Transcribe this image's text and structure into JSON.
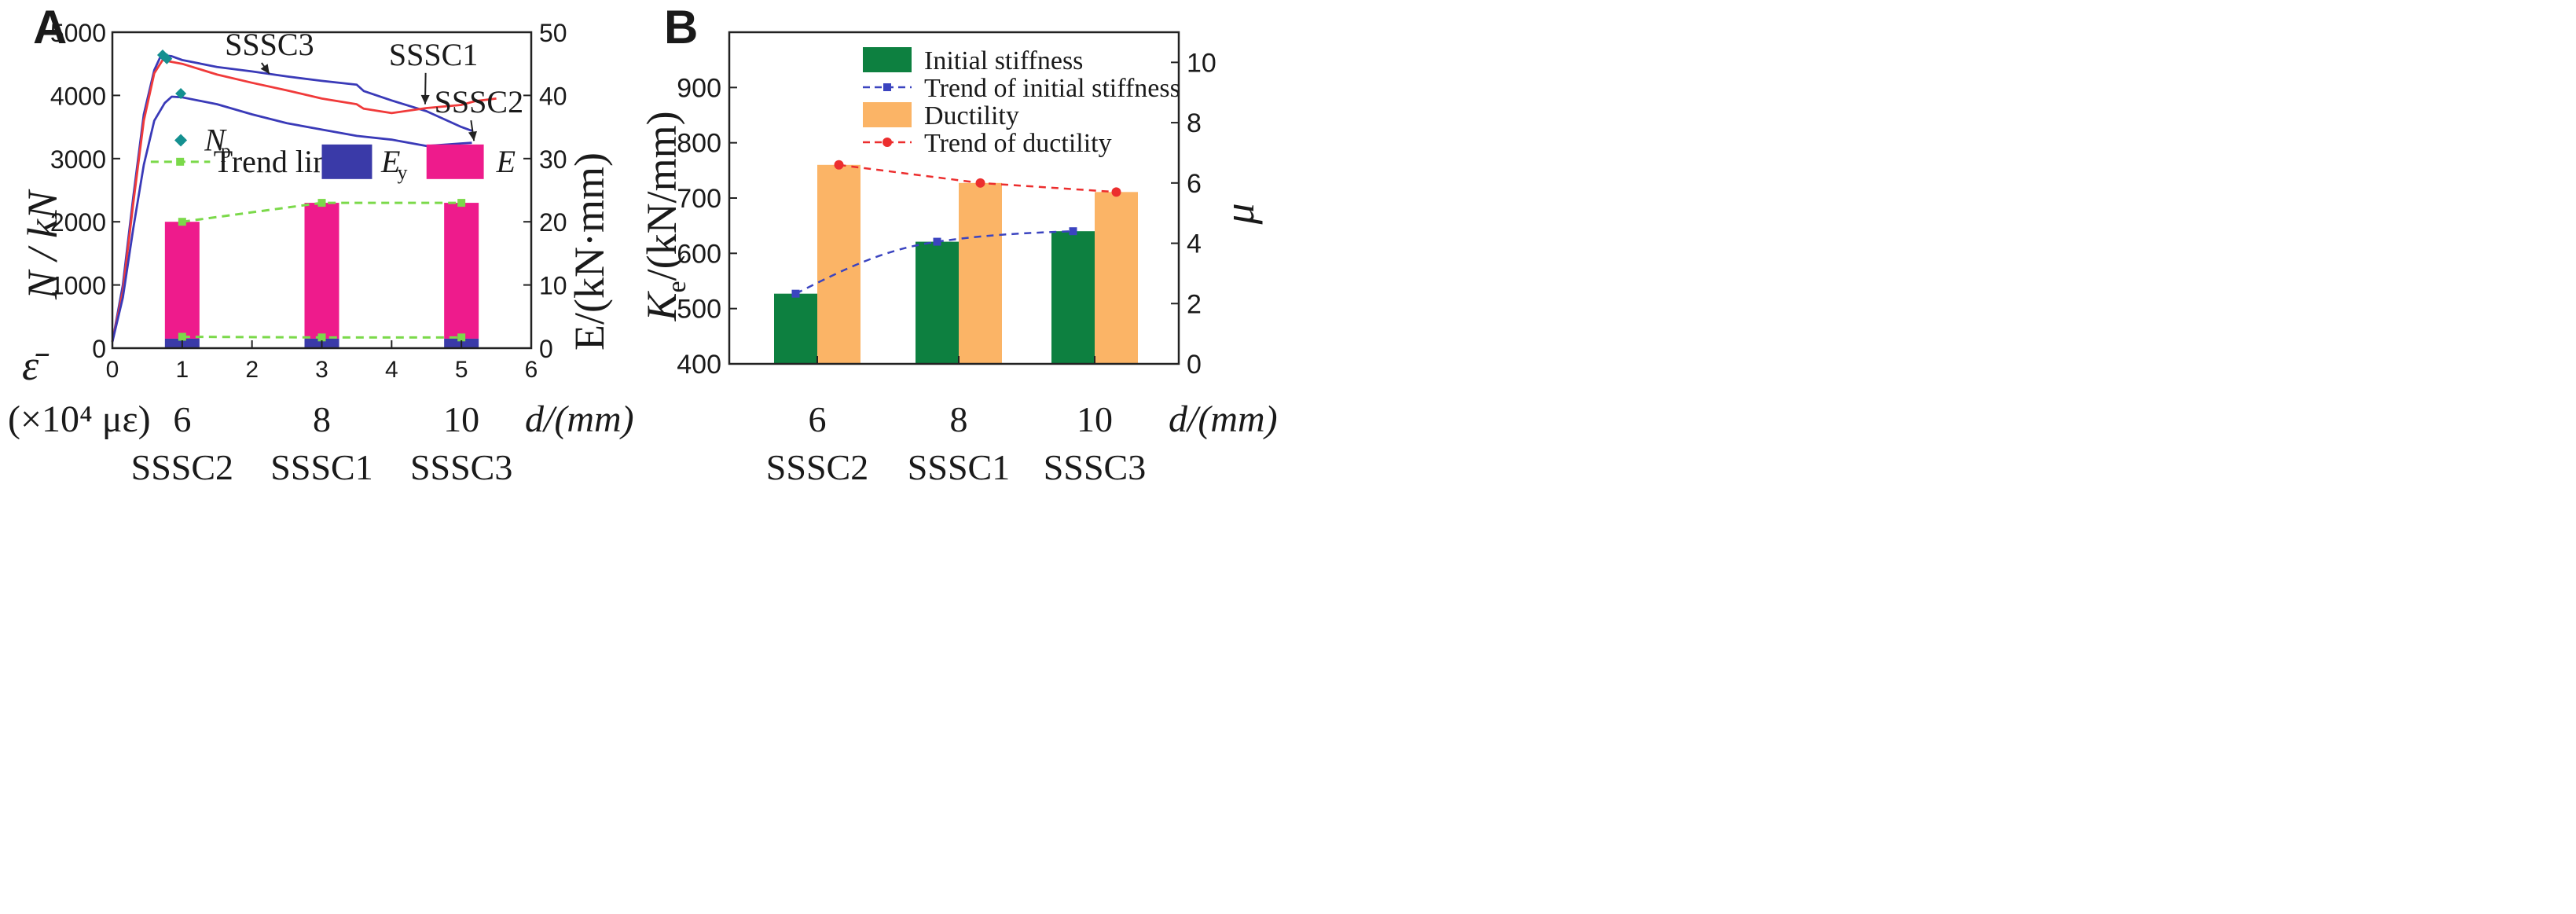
{
  "colors": {
    "ey_blue": "#3a3aa8",
    "e_magenta": "#ee1b8c",
    "trend_green": "#7bd94a",
    "teal": "#149090",
    "curve_red": "#f03a3a",
    "curve_blue": "#3a3ab8",
    "stiff_green": "#0d8040",
    "duct_orange": "#fbb466",
    "trend_blue": "#3b44c0",
    "trend_red": "#ec2e2e"
  },
  "chart_data": [
    {
      "panel_label": "A",
      "type": "line+bar",
      "ylabel_left": "N / kN",
      "ylabel_right": "E/(kN·mm)",
      "x_symbol": "ε̄",
      "x_unit": "(×10⁴ με)",
      "x_secondary_label": "d/(mm)",
      "x_ticks": [
        "0",
        "1",
        "2",
        "3",
        "4",
        "5",
        "6"
      ],
      "xlim": [
        0,
        6
      ],
      "y_left_ticks": [
        "0",
        "1000",
        "2000",
        "3000",
        "4000",
        "5000"
      ],
      "ylim_left": [
        0,
        5000
      ],
      "y_right_ticks": [
        "0",
        "10",
        "20",
        "30",
        "40",
        "50"
      ],
      "ylim_right": [
        0,
        50
      ],
      "secondary_ticks": [
        {
          "x": 1,
          "d": "6",
          "specimen": "SSSC2"
        },
        {
          "x": 3,
          "d": "8",
          "specimen": "SSSC1"
        },
        {
          "x": 5,
          "d": "10",
          "specimen": "SSSC3"
        }
      ],
      "legend": {
        "np": "N",
        "np_sub": "p",
        "trend": "Trend line",
        "ey": "E",
        "ey_sub": "y",
        "e": "E"
      },
      "curves": [
        {
          "name": "SSSC3",
          "color_key": "curve_blue",
          "points": [
            [
              0,
              100
            ],
            [
              0.15,
              1000
            ],
            [
              0.3,
              2400
            ],
            [
              0.45,
              3700
            ],
            [
              0.6,
              4400
            ],
            [
              0.7,
              4640
            ],
            [
              0.85,
              4620
            ],
            [
              1.0,
              4560
            ],
            [
              1.5,
              4450
            ],
            [
              2.0,
              4380
            ],
            [
              2.5,
              4300
            ],
            [
              3.0,
              4230
            ],
            [
              3.5,
              4170
            ],
            [
              3.6,
              4070
            ],
            [
              4.0,
              3920
            ],
            [
              4.5,
              3750
            ],
            [
              5.0,
              3500
            ],
            [
              5.15,
              3440
            ]
          ]
        },
        {
          "name": "SSSC1",
          "color_key": "curve_red",
          "points": [
            [
              0,
              100
            ],
            [
              0.15,
              900
            ],
            [
              0.3,
              2300
            ],
            [
              0.45,
              3600
            ],
            [
              0.6,
              4350
            ],
            [
              0.72,
              4560
            ],
            [
              0.85,
              4530
            ],
            [
              1.0,
              4500
            ],
            [
              1.5,
              4330
            ],
            [
              2.0,
              4200
            ],
            [
              2.5,
              4080
            ],
            [
              3.0,
              3950
            ],
            [
              3.5,
              3860
            ],
            [
              3.6,
              3790
            ],
            [
              4.0,
              3720
            ],
            [
              4.5,
              3800
            ],
            [
              5.0,
              3850
            ],
            [
              5.2,
              3910
            ],
            [
              5.5,
              3950
            ]
          ]
        },
        {
          "name": "SSSC2",
          "color_key": "curve_blue",
          "points": [
            [
              0,
              100
            ],
            [
              0.15,
              800
            ],
            [
              0.3,
              1900
            ],
            [
              0.45,
              2900
            ],
            [
              0.6,
              3600
            ],
            [
              0.75,
              3880
            ],
            [
              0.85,
              3980
            ],
            [
              1.0,
              3970
            ],
            [
              1.5,
              3860
            ],
            [
              2.0,
              3700
            ],
            [
              2.5,
              3560
            ],
            [
              3.0,
              3460
            ],
            [
              3.5,
              3360
            ],
            [
              4.0,
              3300
            ],
            [
              4.5,
              3200
            ],
            [
              5.0,
              3240
            ],
            [
              5.15,
              3250
            ]
          ]
        }
      ],
      "curve_labels": [
        {
          "text": "SSSC3",
          "x": 2.25,
          "y": 4640,
          "ax": 2.25,
          "ay": 4340
        },
        {
          "text": "SSSC1",
          "x": 4.6,
          "y": 4480,
          "ax": 4.48,
          "ay": 3860
        },
        {
          "text": "SSSC2",
          "x": 5.25,
          "y": 3730,
          "ax": 5.18,
          "ay": 3280
        }
      ],
      "np_points": [
        [
          0.72,
          4640
        ],
        [
          0.78,
          4580
        ],
        [
          0.98,
          4030
        ]
      ],
      "bars_x": [
        1,
        3,
        5
      ],
      "ey_values": [
        1.5,
        1.5,
        1.5
      ],
      "e_values": [
        20,
        23,
        23
      ],
      "trend_e": [
        20,
        23,
        23
      ],
      "trend_ey": [
        1.8,
        1.7,
        1.7
      ]
    },
    {
      "panel_label": "B",
      "type": "bar+line",
      "ylabel_left": "K",
      "ylabel_left_sub": "e",
      "ylabel_left_unit": "/(kN/mm)",
      "ylabel_right": "μ",
      "x_secondary_label": "d/(mm)",
      "categories": [
        "6",
        "8",
        "10"
      ],
      "specimens": [
        "SSSC2",
        "SSSC1",
        "SSSC3"
      ],
      "y_left_ticks": [
        "400",
        "500",
        "600",
        "700",
        "800",
        "900"
      ],
      "ylim_left": [
        400,
        1000
      ],
      "y_right_ticks": [
        "0",
        "2",
        "4",
        "6",
        "8",
        "10"
      ],
      "ylim_right": [
        0,
        11
      ],
      "legend": [
        "Initial stiffness",
        "Trend of initial stiffness",
        "Ductility",
        "Trend of ductility"
      ],
      "initial_stiffness": [
        527,
        621,
        640
      ],
      "ductility": [
        6.6,
        6.0,
        5.7
      ]
    }
  ]
}
